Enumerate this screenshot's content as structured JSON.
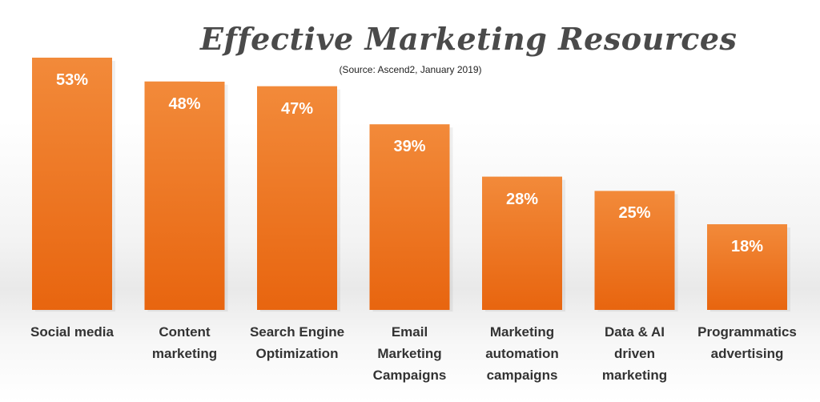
{
  "chart_data": {
    "type": "bar",
    "title": "Effective Marketing Resources",
    "subtitle": "(Source: Ascend2, January 2019)",
    "categories": [
      "Social media",
      "Content marketing",
      "Search Engine Optimization",
      "Email Marketing Campaigns",
      "Marketing automation campaigns",
      "Data & AI driven marketing",
      "Programmatics advertising"
    ],
    "category_label_lines": [
      [
        "Social media"
      ],
      [
        "Content",
        "marketing"
      ],
      [
        "Search Engine",
        "Optimization"
      ],
      [
        "Email",
        "Marketing",
        "Campaigns"
      ],
      [
        "Marketing",
        "automation",
        "campaigns"
      ],
      [
        "Data & AI",
        "driven",
        "marketing"
      ],
      [
        "Programmatics",
        "advertising"
      ]
    ],
    "values": [
      53,
      48,
      47,
      39,
      28,
      25,
      18
    ],
    "value_labels": [
      "53%",
      "48%",
      "47%",
      "39%",
      "28%",
      "25%",
      "18%"
    ],
    "ylim": [
      0,
      53
    ],
    "grid": false,
    "legend": "none",
    "bar_color_top": "#f28a3a",
    "bar_color_bottom": "#e8650f"
  }
}
